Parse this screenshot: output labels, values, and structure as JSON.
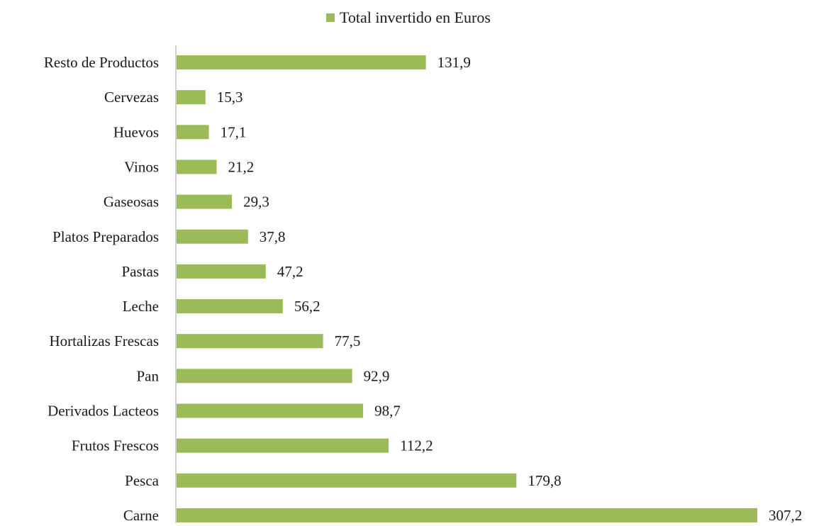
{
  "chart_data": {
    "type": "bar",
    "orientation": "horizontal",
    "legend_position": "top",
    "grid": false,
    "xlim": [
      0,
      307.2
    ],
    "categories": [
      "Resto de Productos",
      "Cervezas",
      "Huevos",
      "Vinos",
      "Gaseosas",
      "Platos Preparados",
      "Pastas",
      "Leche",
      "Hortalizas Frescas",
      "Pan",
      "Derivados Lacteos",
      "Frutos Frescos",
      "Pesca",
      "Carne"
    ],
    "series": [
      {
        "name": "Total invertido en Euros",
        "color": "#9bbb59",
        "values": [
          131.9,
          15.3,
          17.1,
          21.2,
          29.3,
          37.8,
          47.2,
          56.2,
          77.5,
          92.9,
          98.7,
          112.2,
          179.8,
          307.2
        ],
        "value_labels": [
          "131,9",
          "15,3",
          "17,1",
          "21,2",
          "29,3",
          "37,8",
          "47,2",
          "56,2",
          "77,5",
          "92,9",
          "98,7",
          "112,2",
          "179,8",
          "307,2"
        ]
      }
    ]
  }
}
